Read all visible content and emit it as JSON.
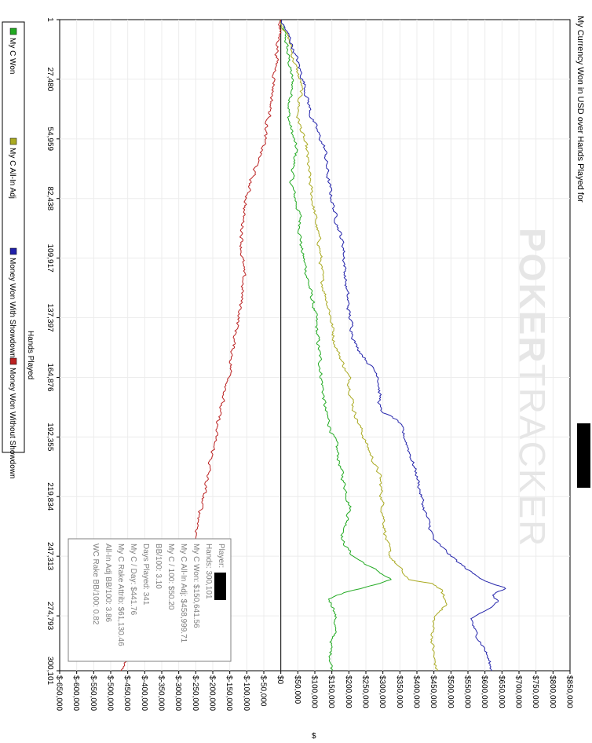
{
  "title": "My Currency Won in USD over Hands Played for",
  "watermark": {
    "bold": "POKER",
    "light": "TRACKER"
  },
  "chart_data": {
    "type": "line",
    "xlabel": "Hands Played",
    "ylabel": "$",
    "xlim": [
      1,
      300101
    ],
    "ylim": [
      -650000,
      850000
    ],
    "x_ticks": [
      1,
      27480,
      54959,
      82438,
      109917,
      137397,
      164876,
      192355,
      219834,
      247313,
      274793,
      300101
    ],
    "x_tick_labels": [
      "1",
      "27,480",
      "54,959",
      "82,438",
      "109,917",
      "137,397",
      "164,876",
      "192,355",
      "219,834",
      "247,313",
      "274,793",
      "300,101"
    ],
    "y_ticks": [
      -650000,
      -600000,
      -550000,
      -500000,
      -450000,
      -400000,
      -350000,
      -300000,
      -250000,
      -200000,
      -150000,
      -100000,
      -50000,
      0,
      50000,
      100000,
      150000,
      200000,
      250000,
      300000,
      350000,
      400000,
      450000,
      500000,
      550000,
      600000,
      650000,
      700000,
      750000,
      800000,
      850000
    ],
    "y_tick_labels": [
      "$-650,000",
      "$-600,000",
      "$-550,000",
      "$-500,000",
      "$-450,000",
      "$-400,000",
      "$-350,000",
      "$-300,000",
      "$-250,000",
      "$-200,000",
      "$-150,000",
      "$-100,000",
      "$-50,000",
      "$0",
      "$50,000",
      "$100,000",
      "$150,000",
      "$200,000",
      "$250,000",
      "$300,000",
      "$350,000",
      "$400,000",
      "$450,000",
      "$500,000",
      "$550,000",
      "$600,000",
      "$650,000",
      "$700,000",
      "$750,000",
      "$800,000",
      "$850,000"
    ],
    "grid": true,
    "legend_position": "bottom",
    "series": [
      {
        "name": "My C Won",
        "color": "#22aa22",
        "x": [
          1,
          10000,
          20000,
          30000,
          45000,
          60000,
          75000,
          90000,
          105000,
          120000,
          135000,
          150000,
          165000,
          180000,
          195000,
          210000,
          225000,
          240000,
          247000,
          252000,
          258000,
          262000,
          264000,
          267000,
          272000,
          280000,
          290000,
          300101
        ],
        "y": [
          0,
          15000,
          25000,
          35000,
          22000,
          45000,
          30000,
          55000,
          60000,
          80000,
          100000,
          110000,
          120000,
          130000,
          160000,
          180000,
          205000,
          180000,
          210000,
          260000,
          325000,
          240000,
          180000,
          140000,
          160000,
          160000,
          145000,
          150641
        ]
      },
      {
        "name": "My C All-In Adj",
        "color": "#aaaa22",
        "x": [
          1,
          10000,
          20000,
          30000,
          45000,
          60000,
          75000,
          90000,
          105000,
          120000,
          135000,
          150000,
          165000,
          180000,
          195000,
          210000,
          225000,
          240000,
          247000,
          250000,
          253000,
          258000,
          260000,
          263000,
          267000,
          270000,
          275000,
          285000,
          295000,
          300101
        ],
        "y": [
          0,
          25000,
          40000,
          60000,
          50000,
          75000,
          85000,
          100000,
          115000,
          120000,
          145000,
          160000,
          200000,
          215000,
          250000,
          290000,
          300000,
          310000,
          320000,
          335000,
          350000,
          370000,
          450000,
          470000,
          480000,
          490000,
          450000,
          445000,
          450000,
          458999
        ]
      },
      {
        "name": "Money Won With Showdown",
        "color": "#2222aa",
        "x": [
          1,
          10000,
          20000,
          30000,
          45000,
          60000,
          75000,
          90000,
          105000,
          120000,
          135000,
          150000,
          165000,
          180000,
          185000,
          195000,
          210000,
          225000,
          240000,
          250000,
          256000,
          259000,
          262000,
          265000,
          268000,
          272000,
          276000,
          282000,
          290000,
          300101
        ],
        "y": [
          0,
          30000,
          50000,
          70000,
          90000,
          130000,
          140000,
          160000,
          185000,
          190000,
          200000,
          220000,
          290000,
          290000,
          345000,
          370000,
          400000,
          420000,
          450000,
          520000,
          570000,
          610000,
          660000,
          620000,
          640000,
          600000,
          560000,
          570000,
          600000,
          620000
        ]
      },
      {
        "name": "Money Won Without Showdown",
        "color": "#bb2222",
        "x": [
          1,
          15000,
          30000,
          45000,
          60000,
          75000,
          90000,
          105000,
          120000,
          135000,
          150000,
          165000,
          180000,
          195000,
          210000,
          225000,
          240000,
          255000,
          262000,
          270000,
          280000,
          290000,
          300101
        ],
        "y": [
          0,
          -10000,
          -20000,
          -35000,
          -55000,
          -90000,
          -110000,
          -115000,
          -110000,
          -120000,
          -140000,
          -150000,
          -180000,
          -195000,
          -215000,
          -235000,
          -250000,
          -285000,
          -300000,
          -340000,
          -400000,
          -430000,
          -470000
        ]
      }
    ]
  },
  "stats": {
    "player": "Player:",
    "hands": "Hands: 300,101",
    "my_c_won": "My C Won: $150,641.56",
    "all_in_adj": "My C All-In Adj: $458,999.71",
    "per_100": "My C / 100: $50.20",
    "bb_100": "BB/100: 3.10",
    "days": "Days Played: 341",
    "per_day": "My C / Day: $441.76",
    "rake": "My C Rake Attrib: $61,130.46",
    "all_in_bb": "All-In Adj BB/100: 3.86",
    "wc_rake": "WC Rake BB/100: 0.82"
  }
}
